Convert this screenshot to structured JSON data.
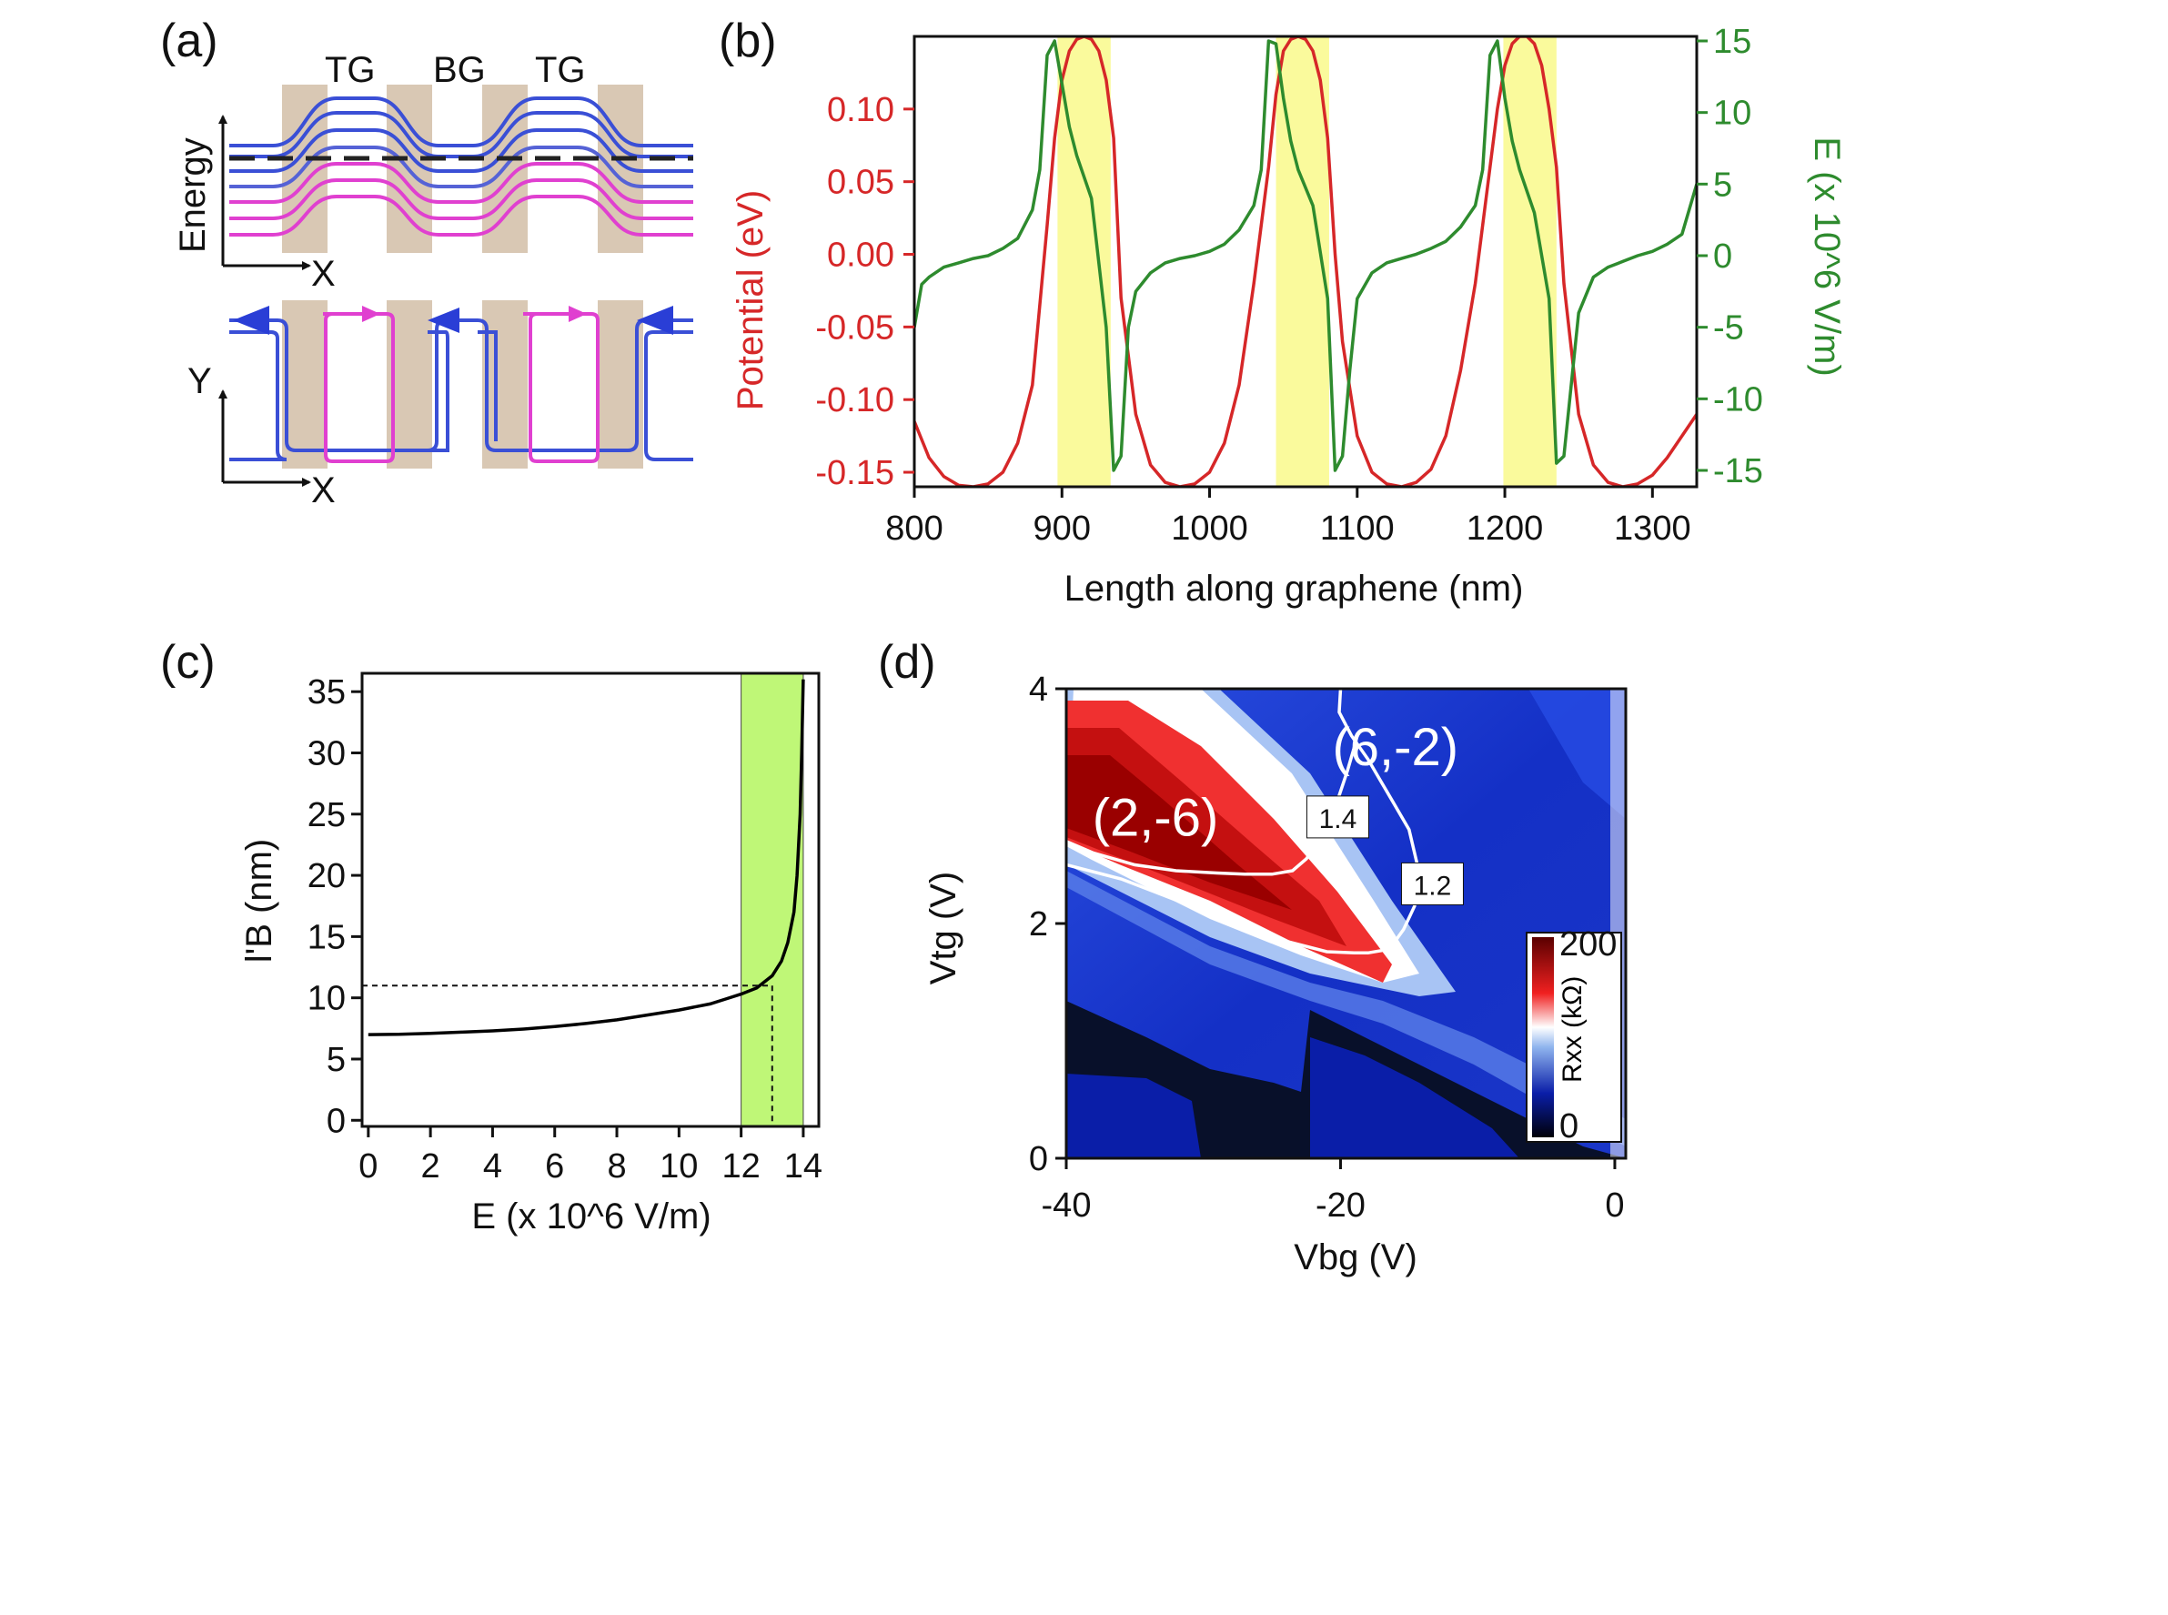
{
  "figure": {
    "panel_labels": [
      "(a)",
      "(b)",
      "(c)",
      "(d)"
    ]
  },
  "panel_a": {
    "gate_labels": [
      "TG",
      "BG",
      "TG"
    ],
    "top_axis_labels": {
      "y": "Energy",
      "x": "X"
    },
    "bottom_axis_labels": {
      "y": "Y",
      "x": "X"
    },
    "colors": {
      "blue": "#3a4fd6",
      "magenta": "#e040d0",
      "gate": "#d9c8b4"
    }
  },
  "chart_data": [
    {
      "id": "b",
      "type": "line",
      "xlabel": "Length along graphene (nm)",
      "ylabel_left": "Potential (eV)",
      "ylabel_right": "E (x 10^6 V/m)",
      "xlim": [
        800,
        1330
      ],
      "ylim_left": [
        -0.16,
        0.15
      ],
      "ylim_right": [
        -15,
        15
      ],
      "x_ticks": [
        "800",
        "900",
        "1000",
        "1100",
        "1200",
        "1300"
      ],
      "x_tick_values": [
        800,
        900,
        1000,
        1100,
        1200,
        1300
      ],
      "y_left_ticks": [
        "0.10",
        "0.05",
        "0.00",
        "-0.05",
        "-0.10",
        "-0.15"
      ],
      "y_left_tick_values": [
        0.1,
        0.05,
        0.0,
        -0.05,
        -0.1,
        -0.15
      ],
      "y_right_ticks": [
        "15",
        "10",
        "5",
        "0",
        "-5",
        "-10",
        "-15"
      ],
      "y_right_tick_values": [
        15,
        10,
        5,
        0,
        -5,
        -10,
        -15
      ],
      "highlight_bands": [
        [
          897,
          933
        ],
        [
          1045,
          1081
        ],
        [
          1199,
          1235
        ]
      ],
      "series": [
        {
          "name": "Potential (eV)",
          "axis": "left",
          "color": "#d62728",
          "x": [
            800,
            810,
            820,
            830,
            840,
            850,
            860,
            870,
            880,
            890,
            895,
            900,
            905,
            910,
            915,
            920,
            925,
            930,
            935,
            940,
            950,
            960,
            970,
            980,
            990,
            1000,
            1010,
            1020,
            1030,
            1040,
            1045,
            1050,
            1055,
            1060,
            1065,
            1070,
            1075,
            1080,
            1085,
            1090,
            1100,
            1110,
            1120,
            1130,
            1140,
            1150,
            1160,
            1170,
            1180,
            1190,
            1195,
            1200,
            1205,
            1210,
            1215,
            1220,
            1225,
            1230,
            1235,
            1240,
            1250,
            1260,
            1270,
            1280,
            1290,
            1300,
            1310,
            1320,
            1330
          ],
          "y": [
            -0.115,
            -0.14,
            -0.153,
            -0.159,
            -0.16,
            -0.158,
            -0.15,
            -0.13,
            -0.09,
            0.02,
            0.08,
            0.12,
            0.14,
            0.148,
            0.15,
            0.148,
            0.14,
            0.12,
            0.08,
            -0.03,
            -0.11,
            -0.145,
            -0.157,
            -0.16,
            -0.158,
            -0.15,
            -0.13,
            -0.09,
            -0.02,
            0.06,
            0.11,
            0.14,
            0.148,
            0.15,
            0.148,
            0.14,
            0.12,
            0.08,
            0.0,
            -0.06,
            -0.125,
            -0.15,
            -0.158,
            -0.16,
            -0.157,
            -0.148,
            -0.125,
            -0.08,
            -0.02,
            0.06,
            0.1,
            0.13,
            0.145,
            0.15,
            0.15,
            0.145,
            0.13,
            0.1,
            0.06,
            -0.02,
            -0.11,
            -0.145,
            -0.157,
            -0.16,
            -0.158,
            -0.152,
            -0.14,
            -0.125,
            -0.11
          ]
        },
        {
          "name": "E (x 10^6 V/m)",
          "axis": "right",
          "color": "#2e8b2e",
          "x": [
            800,
            805,
            810,
            820,
            830,
            840,
            850,
            860,
            870,
            880,
            885,
            890,
            895,
            900,
            905,
            910,
            920,
            930,
            935,
            940,
            945,
            950,
            960,
            970,
            980,
            990,
            1000,
            1010,
            1020,
            1030,
            1035,
            1040,
            1045,
            1050,
            1055,
            1060,
            1070,
            1080,
            1085,
            1090,
            1095,
            1100,
            1110,
            1120,
            1130,
            1140,
            1150,
            1160,
            1170,
            1180,
            1185,
            1190,
            1195,
            1200,
            1205,
            1210,
            1220,
            1230,
            1235,
            1240,
            1250,
            1260,
            1270,
            1280,
            1290,
            1300,
            1310,
            1320,
            1330
          ],
          "y": [
            -5,
            -2,
            -1.5,
            -0.8,
            -0.5,
            -0.2,
            0,
            0.5,
            1.2,
            3.2,
            6,
            14,
            15,
            12,
            9,
            7,
            4,
            -5,
            -15,
            -14,
            -5,
            -2.5,
            -1.2,
            -0.5,
            -0.2,
            0,
            0.3,
            0.8,
            1.8,
            3.5,
            6,
            15,
            14.8,
            11,
            8,
            6,
            3.5,
            -3,
            -15,
            -14,
            -8,
            -3,
            -1.2,
            -0.5,
            -0.2,
            0.1,
            0.5,
            1,
            2,
            3.5,
            6,
            14,
            15,
            11,
            8,
            6,
            3,
            -3,
            -14.5,
            -14,
            -4,
            -1.5,
            -0.8,
            -0.4,
            0,
            0.3,
            0.8,
            1.5,
            5
          ]
        }
      ]
    },
    {
      "id": "c",
      "type": "line",
      "xlabel": "E (x 10^6 V/m)",
      "ylabel": "l'B (nm)",
      "xlim": [
        -0.2,
        14.5
      ],
      "ylim": [
        -0.5,
        36.5
      ],
      "x_ticks": [
        "0",
        "2",
        "4",
        "6",
        "8",
        "10",
        "12",
        "14"
      ],
      "x_tick_values": [
        0,
        2,
        4,
        6,
        8,
        10,
        12,
        14
      ],
      "y_ticks": [
        "0",
        "5",
        "10",
        "15",
        "20",
        "25",
        "30",
        "35"
      ],
      "y_tick_values": [
        0,
        5,
        10,
        15,
        20,
        25,
        30,
        35
      ],
      "highlight_band": [
        12,
        14
      ],
      "reference_point": {
        "x": 13,
        "y": 11
      },
      "series": [
        {
          "name": "l'B",
          "color": "#000000",
          "x": [
            0,
            1,
            2,
            3,
            4,
            5,
            6,
            7,
            8,
            9,
            10,
            11,
            11.5,
            12,
            12.5,
            13,
            13.3,
            13.5,
            13.7,
            13.8,
            13.9,
            13.95,
            14
          ],
          "y": [
            7,
            7.02,
            7.1,
            7.2,
            7.3,
            7.45,
            7.65,
            7.9,
            8.2,
            8.6,
            9.0,
            9.5,
            9.9,
            10.3,
            10.8,
            11.8,
            13,
            14.5,
            17,
            20,
            25,
            30,
            36
          ]
        }
      ]
    },
    {
      "id": "d",
      "type": "heatmap",
      "xlabel": "Vbg (V)",
      "ylabel": "Vtg (V)",
      "xlim": [
        -40,
        0.8
      ],
      "ylim": [
        0,
        4
      ],
      "x_ticks": [
        "-40",
        "-20",
        "0"
      ],
      "x_tick_values": [
        -40,
        -20,
        0
      ],
      "y_ticks": [
        "0",
        "2",
        "4"
      ],
      "y_tick_values": [
        0,
        2,
        4
      ],
      "colorbar": {
        "label": "Rxx (kΩ)",
        "ticks": [
          "200",
          "0"
        ],
        "tick_values": [
          200,
          0
        ]
      },
      "region_labels": [
        {
          "text": "(6,-2)",
          "x": -16,
          "y": 3.35
        },
        {
          "text": "(2,-6)",
          "x": -33.5,
          "y": 2.75
        }
      ],
      "contours": [
        {
          "label": "1.4",
          "label_at": {
            "x": -20.2,
            "y": 2.9
          },
          "x": [
            -40,
            -38,
            -35,
            -32,
            -29,
            -27,
            -25,
            -23.5,
            -22.5,
            -21.5,
            -20.5,
            -19.5,
            -19
          ],
          "y": [
            2.7,
            2.6,
            2.5,
            2.45,
            2.43,
            2.42,
            2.42,
            2.45,
            2.55,
            2.7,
            2.95,
            3.3,
            3.5
          ]
        },
        {
          "label": "1.2",
          "label_at": {
            "x": -13.3,
            "y": 2.33
          },
          "x": [
            -20,
            -20.1,
            -19.2,
            -18,
            -17,
            -16,
            -15,
            -14.4,
            -14.6,
            -15.4,
            -16.2,
            -17,
            -18,
            -19,
            -21,
            -24,
            -28,
            -32,
            -36,
            -40
          ],
          "y": [
            4,
            3.8,
            3.6,
            3.4,
            3.2,
            3.0,
            2.8,
            2.5,
            2.15,
            1.95,
            1.82,
            1.77,
            1.75,
            1.75,
            1.76,
            1.85,
            2.0,
            2.2,
            2.38,
            2.5
          ]
        }
      ]
    }
  ]
}
